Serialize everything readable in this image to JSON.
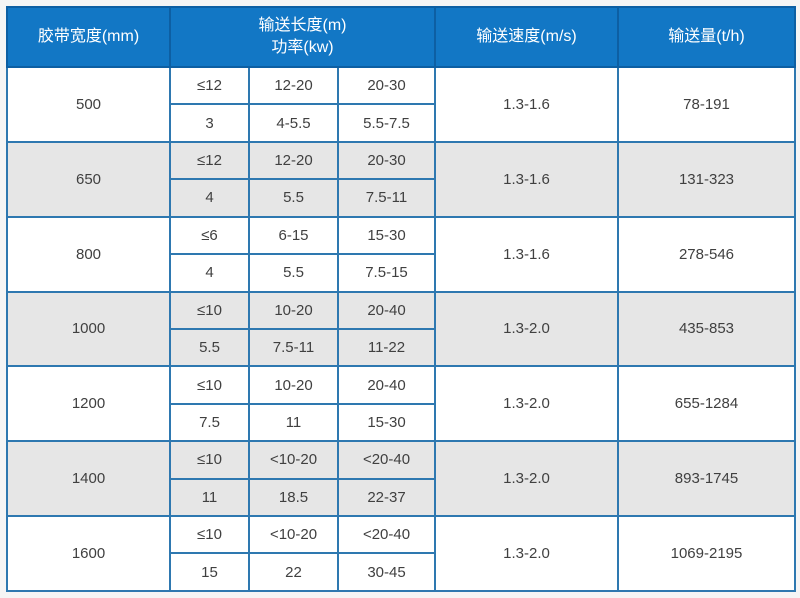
{
  "colors": {
    "header_bg": "#1277c5",
    "header_divider": "#0d5fa3",
    "border": "#2e78b0",
    "row_bg": "#ffffff",
    "row_alt_bg": "#e6e6e6",
    "text": "#404040",
    "header_text": "#ffffff",
    "page_bg": "#f5f5f5"
  },
  "chart_data": {
    "type": "table",
    "columns": {
      "belt_width": "胶带宽度(mm)",
      "length_power": [
        "输送长度(m)",
        "功率(kw)"
      ],
      "speed": "输送速度(m/s)",
      "capacity": "输送量(t/h)"
    },
    "rows": [
      {
        "belt_width": "500",
        "lengths": [
          "≤12",
          "12-20",
          "20-30"
        ],
        "powers": [
          "3",
          "4-5.5",
          "5.5-7.5"
        ],
        "speed": "1.3-1.6",
        "capacity": "78-191"
      },
      {
        "belt_width": "650",
        "lengths": [
          "≤12",
          "12-20",
          "20-30"
        ],
        "powers": [
          "4",
          "5.5",
          "7.5-11"
        ],
        "speed": "1.3-1.6",
        "capacity": "131-323"
      },
      {
        "belt_width": "800",
        "lengths": [
          "≤6",
          "6-15",
          "15-30"
        ],
        "powers": [
          "4",
          "5.5",
          "7.5-15"
        ],
        "speed": "1.3-1.6",
        "capacity": "278-546"
      },
      {
        "belt_width": "1000",
        "lengths": [
          "≤10",
          "10-20",
          "20-40"
        ],
        "powers": [
          "5.5",
          "7.5-11",
          "11-22"
        ],
        "speed": "1.3-2.0",
        "capacity": "435-853"
      },
      {
        "belt_width": "1200",
        "lengths": [
          "≤10",
          "10-20",
          "20-40"
        ],
        "powers": [
          "7.5",
          "11",
          "15-30"
        ],
        "speed": "1.3-2.0",
        "capacity": "655-1284"
      },
      {
        "belt_width": "1400",
        "lengths": [
          "≤10",
          "<10-20",
          "<20-40"
        ],
        "powers": [
          "11",
          "18.5",
          "22-37"
        ],
        "speed": "1.3-2.0",
        "capacity": "893-1745"
      },
      {
        "belt_width": "1600",
        "lengths": [
          "≤10",
          "<10-20",
          "<20-40"
        ],
        "powers": [
          "15",
          "22",
          "30-45"
        ],
        "speed": "1.3-2.0",
        "capacity": "1069-2195"
      }
    ]
  }
}
